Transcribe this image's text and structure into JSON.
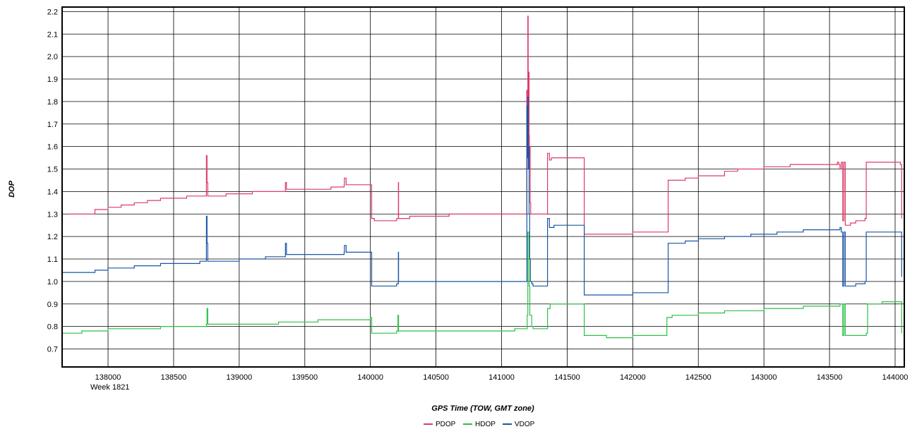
{
  "chart_data": {
    "type": "line",
    "xlabel": "GPS Time (TOW, GMT zone)",
    "ylabel": "DOP",
    "xlim": [
      137650,
      144070
    ],
    "ylim": [
      0.62,
      2.22
    ],
    "x_ticks": [
      138000,
      138500,
      139000,
      139500,
      140000,
      140500,
      141000,
      141500,
      142000,
      142500,
      143000,
      143500,
      144000
    ],
    "x_tick_labels": [
      "138000",
      "138500",
      "139000",
      "139500",
      "140000",
      "140500",
      "141000",
      "141500",
      "142000",
      "142500",
      "143000",
      "143500",
      "144000"
    ],
    "x_sublabel": "Week 1821",
    "y_ticks": [
      0.7,
      0.8,
      0.9,
      1.0,
      1.1,
      1.2,
      1.3,
      1.4,
      1.5,
      1.6,
      1.7,
      1.8,
      1.9,
      2.0,
      2.1,
      2.2
    ],
    "y_tick_labels": [
      "0.7",
      "0.8",
      "0.9",
      "1.0",
      "1.1",
      "1.2",
      "1.3",
      "1.4",
      "1.5",
      "1.6",
      "1.7",
      "1.8",
      "1.9",
      "2.0",
      "2.1",
      "2.2"
    ],
    "grid": true,
    "legend_position": "bottom-center",
    "series": [
      {
        "name": "PDOP",
        "color": "#dc3c6a",
        "x": [
          137700,
          137790,
          137900,
          138000,
          138100,
          138200,
          138300,
          138400,
          138500,
          138600,
          138700,
          138740,
          138750,
          138755,
          138760,
          138770,
          138900,
          139000,
          139100,
          139350,
          139352,
          139360,
          139500,
          139700,
          139800,
          139802,
          139815,
          140000,
          140010,
          140030,
          140050,
          140100,
          140200,
          140212,
          140213,
          140215,
          140230,
          140300,
          140400,
          140600,
          140800,
          141000,
          141100,
          141190,
          141192,
          141196,
          141200,
          141203,
          141207,
          141210,
          141212,
          141215,
          141218,
          141222,
          141225,
          141240,
          141290,
          141340,
          141350,
          141365,
          141380,
          141500,
          141625,
          141630,
          141700,
          141800,
          142000,
          142260,
          142270,
          142300,
          142400,
          142500,
          142700,
          142800,
          143000,
          143200,
          143400,
          143560,
          143570,
          143580,
          143590,
          143600,
          143610,
          143620,
          143640,
          143660,
          143700,
          143770,
          143780,
          143800,
          143900,
          144020,
          144040,
          144050
        ],
        "y": [
          1.3,
          1.3,
          1.32,
          1.33,
          1.34,
          1.35,
          1.36,
          1.37,
          1.37,
          1.38,
          1.38,
          1.38,
          1.56,
          1.44,
          1.38,
          1.38,
          1.39,
          1.39,
          1.4,
          1.4,
          1.44,
          1.41,
          1.41,
          1.42,
          1.43,
          1.46,
          1.43,
          1.43,
          1.28,
          1.27,
          1.27,
          1.27,
          1.28,
          1.28,
          1.44,
          1.28,
          1.28,
          1.29,
          1.29,
          1.3,
          1.3,
          1.3,
          1.3,
          1.3,
          1.85,
          1.7,
          2.18,
          1.6,
          1.93,
          1.65,
          1.5,
          1.6,
          1.35,
          1.3,
          1.3,
          1.3,
          1.3,
          1.3,
          1.57,
          1.54,
          1.55,
          1.55,
          1.55,
          1.21,
          1.21,
          1.21,
          1.22,
          1.22,
          1.45,
          1.45,
          1.46,
          1.47,
          1.49,
          1.5,
          1.51,
          1.52,
          1.52,
          1.53,
          1.52,
          1.5,
          1.53,
          1.27,
          1.53,
          1.25,
          1.25,
          1.26,
          1.27,
          1.28,
          1.53,
          1.53,
          1.53,
          1.53,
          1.52,
          1.28
        ]
      },
      {
        "name": "HDOP",
        "color": "#2fbf49",
        "x": [
          137650,
          137700,
          137800,
          137900,
          138000,
          138200,
          138400,
          138600,
          138740,
          138750,
          138755,
          138760,
          138780,
          139000,
          139300,
          139600,
          139800,
          140000,
          140010,
          140100,
          140200,
          140210,
          140215,
          140230,
          140400,
          140600,
          140800,
          141000,
          141100,
          141150,
          141180,
          141190,
          141195,
          141200,
          141210,
          141215,
          141230,
          141240,
          141290,
          141340,
          141350,
          141370,
          141500,
          141600,
          141620,
          141630,
          141700,
          141800,
          142000,
          142200,
          142260,
          142270,
          142300,
          142500,
          142700,
          143000,
          143300,
          143500,
          143580,
          143590,
          143600,
          143610,
          143620,
          143700,
          143780,
          143790,
          143900,
          144000,
          144040,
          144050
        ],
        "y": [
          0.77,
          0.77,
          0.78,
          0.78,
          0.79,
          0.79,
          0.8,
          0.8,
          0.8,
          0.81,
          0.88,
          0.81,
          0.81,
          0.81,
          0.82,
          0.83,
          0.83,
          0.84,
          0.77,
          0.77,
          0.78,
          0.85,
          0.78,
          0.78,
          0.78,
          0.78,
          0.78,
          0.78,
          0.79,
          0.79,
          0.79,
          0.79,
          0.85,
          1.22,
          0.98,
          0.85,
          0.8,
          0.79,
          0.79,
          0.79,
          0.88,
          0.9,
          0.9,
          0.9,
          0.9,
          0.76,
          0.76,
          0.75,
          0.76,
          0.76,
          0.84,
          0.84,
          0.85,
          0.86,
          0.87,
          0.88,
          0.89,
          0.89,
          0.9,
          0.9,
          0.76,
          0.9,
          0.76,
          0.76,
          0.77,
          0.9,
          0.91,
          0.91,
          0.91,
          0.77
        ]
      },
      {
        "name": "VDOP",
        "color": "#1a55a8",
        "x": [
          137650,
          137700,
          137800,
          137900,
          138000,
          138200,
          138400,
          138550,
          138700,
          138740,
          138750,
          138755,
          138760,
          138770,
          139000,
          139200,
          139350,
          139352,
          139360,
          139500,
          139700,
          139800,
          139802,
          139815,
          140000,
          140010,
          140030,
          140100,
          140200,
          140212,
          140213,
          140215,
          140230,
          140300,
          140500,
          140700,
          140900,
          141100,
          141170,
          141180,
          141190,
          141193,
          141197,
          141200,
          141203,
          141207,
          141210,
          141214,
          141220,
          141230,
          141240,
          141280,
          141300,
          141340,
          141350,
          141365,
          141400,
          141500,
          141625,
          141630,
          141700,
          141800,
          142000,
          142260,
          142270,
          142300,
          142400,
          142500,
          142700,
          142900,
          143100,
          143300,
          143500,
          143580,
          143590,
          143600,
          143610,
          143620,
          143700,
          143770,
          143780,
          143800,
          144000,
          144040,
          144050
        ],
        "y": [
          1.04,
          1.04,
          1.04,
          1.05,
          1.06,
          1.07,
          1.08,
          1.08,
          1.09,
          1.09,
          1.29,
          1.17,
          1.09,
          1.09,
          1.1,
          1.11,
          1.11,
          1.17,
          1.12,
          1.12,
          1.12,
          1.13,
          1.16,
          1.13,
          1.13,
          0.98,
          0.98,
          0.98,
          0.99,
          0.99,
          1.13,
          1.0,
          1.0,
          1.0,
          1.0,
          1.0,
          1.0,
          1.0,
          1.0,
          1.0,
          1.0,
          1.78,
          1.55,
          1.82,
          1.5,
          1.6,
          1.3,
          1.1,
          1.0,
          0.99,
          0.98,
          0.98,
          0.98,
          0.98,
          1.28,
          1.24,
          1.25,
          1.25,
          1.25,
          0.94,
          0.94,
          0.94,
          0.95,
          0.95,
          1.17,
          1.17,
          1.18,
          1.19,
          1.2,
          1.21,
          1.22,
          1.23,
          1.23,
          1.24,
          1.22,
          0.98,
          1.22,
          0.98,
          0.99,
          1.0,
          1.22,
          1.22,
          1.22,
          1.22,
          1.02
        ]
      }
    ]
  }
}
